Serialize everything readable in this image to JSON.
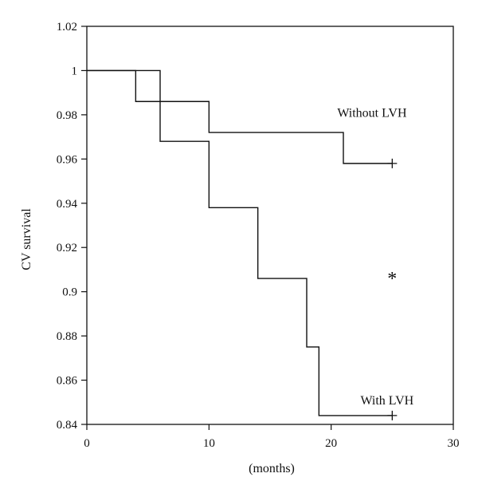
{
  "chart_data": {
    "type": "line",
    "title": "",
    "xlabel": "(months)",
    "ylabel": "CV survival",
    "xlim": [
      0,
      30
    ],
    "ylim": [
      0.84,
      1.02
    ],
    "x_ticks": [
      0,
      10,
      20,
      30
    ],
    "x_tick_labels": [
      "0",
      "10",
      "20",
      "30"
    ],
    "y_ticks": [
      0.84,
      0.86,
      0.88,
      0.9,
      0.92,
      0.94,
      0.96,
      0.98,
      1.0,
      1.02
    ],
    "y_tick_labels": [
      "0.84",
      "0.86",
      "0.88",
      "0.9",
      "0.92",
      "0.94",
      "0.96",
      "0.98",
      "1",
      "1.02"
    ],
    "grid": false,
    "step": true,
    "series": [
      {
        "name": "Without LVH",
        "x": [
          0,
          4,
          10,
          21,
          25
        ],
        "y": [
          1.0,
          0.986,
          0.972,
          0.958,
          0.958
        ],
        "censor": [
          {
            "x": 25,
            "y": 0.958
          }
        ]
      },
      {
        "name": "With LVH",
        "x": [
          0,
          6,
          10,
          14,
          18,
          19,
          25
        ],
        "y": [
          1.0,
          0.968,
          0.938,
          0.906,
          0.875,
          0.844,
          0.844
        ],
        "censor": [
          {
            "x": 25,
            "y": 0.844
          }
        ]
      }
    ],
    "annotations": [
      {
        "text": "Without LVH",
        "x": 20.5,
        "y": 0.979
      },
      {
        "text": "With LVH",
        "x": 22.4,
        "y": 0.849
      },
      {
        "text": "*",
        "x": 24.6,
        "y": 0.906
      }
    ]
  }
}
